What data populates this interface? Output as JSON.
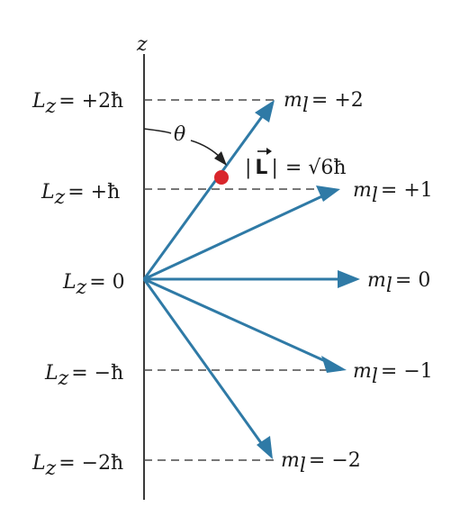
{
  "axis": {
    "label": "z"
  },
  "levels": [
    {
      "lz_text": "= +2ħ",
      "ml_text": "= +2"
    },
    {
      "lz_text": "= +ħ",
      "ml_text": "= +1"
    },
    {
      "lz_text": "= 0",
      "ml_text": "= 0"
    },
    {
      "lz_text": "= −ħ",
      "ml_text": "= −1"
    },
    {
      "lz_text": "= −2ħ",
      "ml_text": "= −2"
    }
  ],
  "symbols": {
    "L": "L",
    "z_sub": "z",
    "m": "m",
    "l_sub": "l"
  },
  "angle": {
    "symbol": "θ"
  },
  "magnitude": {
    "bar_left": "|",
    "vector": "L",
    "bar_right": "|",
    "value": "= √6ħ"
  },
  "colors": {
    "vector": "#2f7aa6",
    "dot": "#d9262c"
  }
}
